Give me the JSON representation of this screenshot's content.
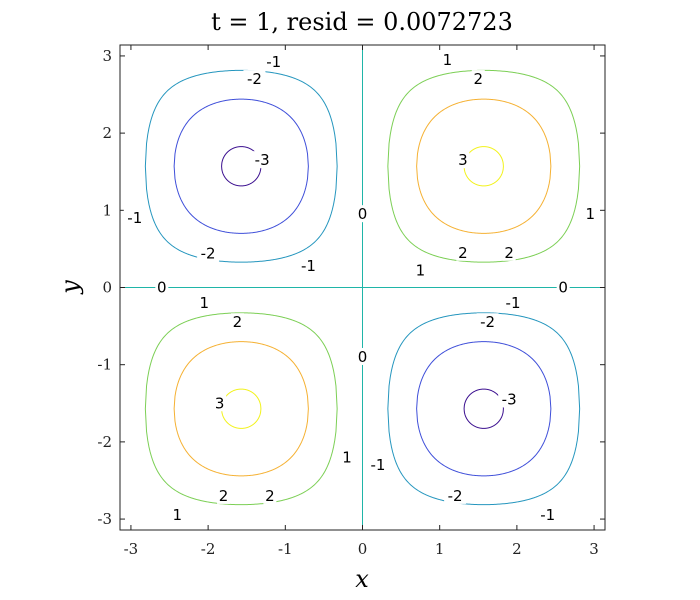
{
  "chart_data": {
    "type": "contour",
    "title": "t = 1,  resid = 0.0072723",
    "xlabel": "x",
    "ylabel": "y",
    "xlim": [
      -3.14159,
      3.14159
    ],
    "ylim": [
      -3.14159,
      3.14159
    ],
    "xticks": [
      -3,
      -2,
      -1,
      0,
      1,
      2,
      3
    ],
    "yticks": [
      -3,
      -2,
      -1,
      0,
      1,
      2,
      3
    ],
    "xtick_labels": [
      "-3",
      "-2",
      "-1",
      "0",
      "1",
      "2",
      "3"
    ],
    "ytick_labels": [
      "3",
      "2",
      "1",
      "0",
      "-1",
      "-2",
      "-3"
    ],
    "function": "u = 3.1 * sin(x) * sin(y)",
    "levels": [
      {
        "value": -3,
        "color": "#3b0f8f"
      },
      {
        "value": -2,
        "color": "#3f4fd9"
      },
      {
        "value": -1,
        "color": "#2596be"
      },
      {
        "value": 0,
        "color": "#1fb5a8"
      },
      {
        "value": 1,
        "color": "#7ccf55"
      },
      {
        "value": 2,
        "color": "#f5b133"
      },
      {
        "value": 3,
        "color": "#f2f21c"
      }
    ],
    "contour_labels": [
      {
        "text": "-1",
        "x": -1.15,
        "y": 2.92,
        "level": -1
      },
      {
        "text": "-2",
        "x": -1.4,
        "y": 2.7,
        "level": -2
      },
      {
        "text": "-3",
        "x": -1.3,
        "y": 1.65,
        "level": -3
      },
      {
        "text": "-1",
        "x": -2.95,
        "y": 0.9,
        "level": -1
      },
      {
        "text": "-2",
        "x": -2.0,
        "y": 0.44,
        "level": -2
      },
      {
        "text": "-1",
        "x": -0.7,
        "y": 0.28,
        "level": -1
      },
      {
        "text": "1",
        "x": 1.1,
        "y": 2.95,
        "level": 1
      },
      {
        "text": "2",
        "x": 1.5,
        "y": 2.7,
        "level": 2
      },
      {
        "text": "3",
        "x": 1.3,
        "y": 1.65,
        "level": 3
      },
      {
        "text": "0",
        "x": 0.0,
        "y": 0.95,
        "level": 0
      },
      {
        "text": "1",
        "x": 2.95,
        "y": 0.95,
        "level": 1
      },
      {
        "text": "2",
        "x": 1.3,
        "y": 0.45,
        "level": 2
      },
      {
        "text": "2",
        "x": 1.9,
        "y": 0.45,
        "level": 2
      },
      {
        "text": "1",
        "x": 0.75,
        "y": 0.22,
        "level": 1
      },
      {
        "text": "0",
        "x": -2.6,
        "y": 0.0,
        "level": 0
      },
      {
        "text": "0",
        "x": 2.6,
        "y": 0.0,
        "level": 0
      },
      {
        "text": "1",
        "x": -2.05,
        "y": -0.2,
        "level": 1
      },
      {
        "text": "2",
        "x": -1.62,
        "y": -0.45,
        "level": 2
      },
      {
        "text": "-1",
        "x": 1.95,
        "y": -0.2,
        "level": -1
      },
      {
        "text": "-2",
        "x": 1.62,
        "y": -0.45,
        "level": -2
      },
      {
        "text": "0",
        "x": 0.0,
        "y": -0.9,
        "level": 0
      },
      {
        "text": "3",
        "x": -1.85,
        "y": -1.5,
        "level": 3
      },
      {
        "text": "-3",
        "x": 1.9,
        "y": -1.45,
        "level": -3
      },
      {
        "text": "1",
        "x": -0.2,
        "y": -2.2,
        "level": 1
      },
      {
        "text": "-1",
        "x": 0.2,
        "y": -2.3,
        "level": -1
      },
      {
        "text": "2",
        "x": -1.8,
        "y": -2.7,
        "level": 2
      },
      {
        "text": "2",
        "x": -1.2,
        "y": -2.7,
        "level": 2
      },
      {
        "text": "-2",
        "x": 1.2,
        "y": -2.7,
        "level": -2
      },
      {
        "text": "1",
        "x": -2.4,
        "y": -2.95,
        "level": 1
      },
      {
        "text": "-1",
        "x": 2.4,
        "y": -2.95,
        "level": -1
      }
    ],
    "grid": false,
    "box": true
  }
}
